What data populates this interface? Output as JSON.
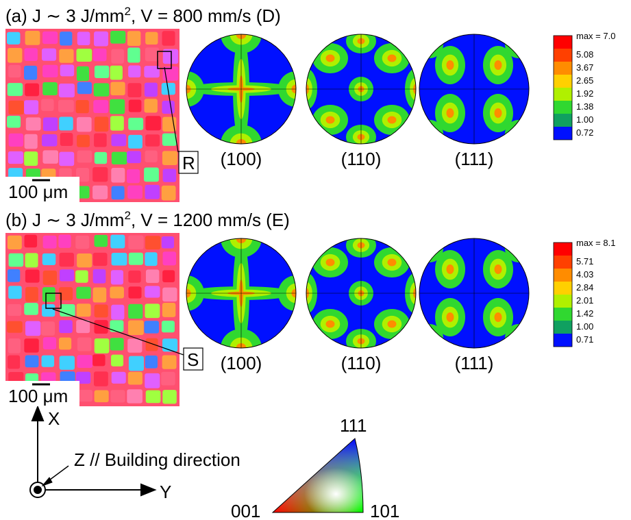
{
  "panels": [
    {
      "title": {
        "prefix": "(a) J ∼ 3 J/mm",
        "sup": "2",
        "suffix": ", V = 800 mm/s (D)"
      },
      "region_label": "R",
      "scale_bar": "100 μm",
      "pole_figures": [
        "(100)",
        "(110)",
        "(111)"
      ],
      "legend": [
        "max = 7.0",
        "5.08",
        "3.67",
        "2.65",
        "1.92",
        "1.38",
        "1.00",
        "0.72"
      ]
    },
    {
      "title": {
        "prefix": "(b) J ∼ 3 J/mm",
        "sup": "2",
        "suffix": ", V = 1200 mm/s (E)"
      },
      "region_label": "S",
      "scale_bar": "100 μm",
      "pole_figures": [
        "(100)",
        "(110)",
        "(111)"
      ],
      "legend": [
        "max = 8.1",
        "5.71",
        "4.03",
        "2.84",
        "2.01",
        "1.42",
        "1.00",
        "0.71"
      ]
    }
  ],
  "axes": {
    "x": "X",
    "y": "Y",
    "z": "Z // Building direction"
  },
  "ipf_triangle": {
    "top": "111",
    "left": "001",
    "right": "101"
  }
}
